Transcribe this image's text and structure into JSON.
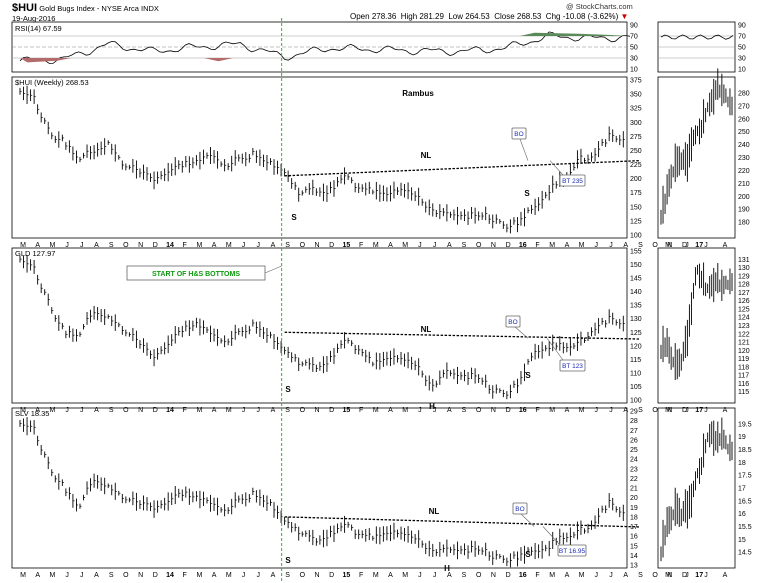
{
  "header": {
    "title": "$HUI",
    "subtitle": "Gold Bugs Index - NYSE Arca INDX",
    "date": "19-Aug-2016",
    "open_label": "Open",
    "open": "278.36",
    "high_label": "High",
    "high": "281.29",
    "low_label": "Low",
    "low": "264.53",
    "close_label": "Close",
    "close": "268.53",
    "chg_label": "Chg",
    "chg": "-10.08 (-3.62%)",
    "source": "@ StockCharts.com",
    "author": "Rambus"
  },
  "panels": {
    "rsi_label": "RSI(14) 67.59",
    "hui_label": "$HUI (Weekly) 268.53",
    "gld_label": "GLD 127.97",
    "slv_label": "SLV 18.35"
  },
  "annotations": {
    "nl": "NL",
    "bo": "BO",
    "s": "S",
    "h": "H",
    "start": "START OF H&S BOTTOMS",
    "bt_hui": "BT 235",
    "bt_gld": "BT 123",
    "bt_slv": "BT 16.95"
  },
  "chart_data": [
    {
      "type": "line",
      "title": "RSI(14) 67.59",
      "yticks": [
        10,
        30,
        50,
        70,
        90
      ],
      "ylim": [
        10,
        90
      ],
      "reference_lines": [
        30,
        50,
        70
      ],
      "x": [
        "2013-03",
        "2013-06",
        "2013-09",
        "2013-12",
        "2014-03",
        "2014-06",
        "2014-09",
        "2014-12",
        "2015-03",
        "2015-06",
        "2015-09",
        "2015-12",
        "2016-03",
        "2016-06",
        "2016-08"
      ],
      "values": [
        25,
        28,
        55,
        42,
        50,
        55,
        32,
        48,
        46,
        43,
        42,
        48,
        70,
        66,
        67.59
      ]
    },
    {
      "type": "bar",
      "title": "$HUI (Weekly) 268.53",
      "ylim": [
        100,
        375
      ],
      "yticks": [
        100,
        125,
        150,
        175,
        200,
        225,
        250,
        275,
        300,
        325,
        350,
        375
      ],
      "xticks": [
        "M",
        "A",
        "M",
        "J",
        "J",
        "A",
        "S",
        "O",
        "N",
        "D",
        "14",
        "F",
        "M",
        "A",
        "M",
        "J",
        "J",
        "A",
        "S",
        "O",
        "N",
        "D",
        "15",
        "F",
        "M",
        "A",
        "M",
        "J",
        "J",
        "A",
        "S",
        "O",
        "N",
        "D",
        "16",
        "F",
        "M",
        "A",
        "M",
        "J",
        "J",
        "A",
        "S",
        "O",
        "N",
        "D",
        "17"
      ],
      "x": [
        "2013-03",
        "2013-04",
        "2013-05",
        "2013-06",
        "2013-07",
        "2013-08",
        "2013-09",
        "2013-10",
        "2013-11",
        "2013-12",
        "2014-01",
        "2014-02",
        "2014-03",
        "2014-04",
        "2014-05",
        "2014-06",
        "2014-07",
        "2014-08",
        "2014-09",
        "2014-10",
        "2014-11",
        "2014-12",
        "2015-01",
        "2015-02",
        "2015-03",
        "2015-04",
        "2015-05",
        "2015-06",
        "2015-07",
        "2015-08",
        "2015-09",
        "2015-10",
        "2015-11",
        "2015-12",
        "2016-01",
        "2016-02",
        "2016-03",
        "2016-04",
        "2016-05",
        "2016-06",
        "2016-07",
        "2016-08"
      ],
      "values": [
        360,
        340,
        280,
        265,
        235,
        250,
        260,
        225,
        215,
        200,
        210,
        225,
        230,
        240,
        225,
        235,
        245,
        230,
        210,
        175,
        180,
        175,
        210,
        180,
        180,
        175,
        185,
        165,
        145,
        135,
        130,
        140,
        130,
        115,
        125,
        150,
        180,
        200,
        235,
        235,
        275,
        268.53
      ],
      "neckline": {
        "from": [
          "2014-09",
          205
        ],
        "to": [
          "2016-08",
          232
        ]
      },
      "bt_level": 235
    },
    {
      "type": "bar",
      "title": "GLD 127.97",
      "ylim": [
        100,
        155
      ],
      "yticks": [
        100,
        105,
        110,
        115,
        120,
        125,
        130,
        135,
        140,
        145,
        150,
        155
      ],
      "xticks": [
        "M",
        "A",
        "M",
        "J",
        "J",
        "A",
        "S",
        "O",
        "N",
        "D",
        "14",
        "F",
        "M",
        "A",
        "M",
        "J",
        "J",
        "A",
        "S",
        "O",
        "N",
        "D",
        "15",
        "F",
        "M",
        "A",
        "M",
        "J",
        "J",
        "A",
        "S",
        "O",
        "N",
        "D",
        "16",
        "F",
        "M",
        "A",
        "M",
        "J",
        "J",
        "A",
        "S",
        "O",
        "N",
        "D",
        "17"
      ],
      "x": [
        "2013-03",
        "2013-04",
        "2013-05",
        "2013-06",
        "2013-07",
        "2013-08",
        "2013-09",
        "2013-10",
        "2013-11",
        "2013-12",
        "2014-01",
        "2014-02",
        "2014-03",
        "2014-04",
        "2014-05",
        "2014-06",
        "2014-07",
        "2014-08",
        "2014-09",
        "2014-10",
        "2014-11",
        "2014-12",
        "2015-01",
        "2015-02",
        "2015-03",
        "2015-04",
        "2015-05",
        "2015-06",
        "2015-07",
        "2015-08",
        "2015-09",
        "2015-10",
        "2015-11",
        "2015-12",
        "2016-01",
        "2016-02",
        "2016-03",
        "2016-04",
        "2016-05",
        "2016-06",
        "2016-07",
        "2016-08"
      ],
      "values": [
        153,
        148,
        135,
        125,
        124,
        133,
        130,
        126,
        122,
        116,
        120,
        126,
        128,
        124,
        122,
        125,
        128,
        124,
        118,
        114,
        112,
        114,
        123,
        118,
        114,
        116,
        116,
        112,
        105,
        110,
        108,
        110,
        104,
        102,
        107,
        118,
        120,
        120,
        121,
        125,
        130,
        127.97
      ],
      "neckline": {
        "from": [
          "2014-09",
          125
        ],
        "to": [
          "2016-08",
          122.5
        ]
      },
      "bt_level": 123
    },
    {
      "type": "bar",
      "title": "SLV 18.35",
      "ylim": [
        13,
        29
      ],
      "yticks": [
        13,
        14,
        15,
        16,
        17,
        18,
        19,
        20,
        21,
        22,
        23,
        24,
        25,
        26,
        27,
        28,
        29
      ],
      "xticks": [
        "M",
        "A",
        "M",
        "J",
        "J",
        "A",
        "S",
        "O",
        "N",
        "D",
        "14",
        "F",
        "M",
        "A",
        "M",
        "J",
        "J",
        "A",
        "S",
        "O",
        "N",
        "D",
        "15",
        "F",
        "M",
        "A",
        "M",
        "J",
        "J",
        "A",
        "S",
        "O",
        "N",
        "D",
        "16",
        "F",
        "M",
        "A",
        "M",
        "J",
        "J",
        "A",
        "S",
        "O",
        "N",
        "D",
        "17"
      ],
      "x": [
        "2013-03",
        "2013-04",
        "2013-05",
        "2013-06",
        "2013-07",
        "2013-08",
        "2013-09",
        "2013-10",
        "2013-11",
        "2013-12",
        "2014-01",
        "2014-02",
        "2014-03",
        "2014-04",
        "2014-05",
        "2014-06",
        "2014-07",
        "2014-08",
        "2014-09",
        "2014-10",
        "2014-11",
        "2014-12",
        "2015-01",
        "2015-02",
        "2015-03",
        "2015-04",
        "2015-05",
        "2015-06",
        "2015-07",
        "2015-08",
        "2015-09",
        "2015-10",
        "2015-11",
        "2015-12",
        "2016-01",
        "2016-02",
        "2016-03",
        "2016-04",
        "2016-05",
        "2016-06",
        "2016-07",
        "2016-08"
      ],
      "values": [
        28,
        27,
        23,
        21,
        19,
        22,
        21,
        20,
        19.5,
        19,
        19.5,
        20.5,
        20,
        19.3,
        18.8,
        19.8,
        20.5,
        19.5,
        17.5,
        16.5,
        15.5,
        16,
        17.5,
        16,
        16,
        16.5,
        16.5,
        15.5,
        14.5,
        14.5,
        14.3,
        15,
        14,
        13.5,
        14,
        14.5,
        15,
        16,
        16.5,
        17,
        19.5,
        18.35
      ],
      "neckline": {
        "from": [
          "2014-09",
          18
        ],
        "to": [
          "2016-08",
          16.95
        ]
      },
      "bt_level": 16.95
    },
    {
      "type": "bar",
      "title": "$HUI daily",
      "ylim": [
        170,
        290
      ],
      "yticks": [
        180,
        190,
        200,
        210,
        220,
        230,
        240,
        250,
        260,
        270,
        280
      ],
      "xticks": [
        "M",
        "J",
        "J",
        "A"
      ],
      "values": [
        185,
        200,
        215,
        225,
        230,
        225,
        240,
        250,
        255,
        265,
        275,
        285,
        280,
        275,
        268
      ]
    },
    {
      "type": "bar",
      "title": "GLD daily",
      "ylim": [
        114,
        132
      ],
      "yticks": [
        115,
        116,
        117,
        118,
        119,
        120,
        121,
        122,
        123,
        124,
        125,
        126,
        127,
        128,
        129,
        130,
        131
      ],
      "xticks": [
        "M",
        "J",
        "J",
        "A"
      ],
      "values": [
        120,
        121,
        119,
        118,
        119,
        121,
        125,
        130,
        129,
        127,
        128,
        128.5,
        127.5,
        128,
        127.97
      ]
    },
    {
      "type": "bar",
      "title": "SLV daily",
      "ylim": [
        14,
        20
      ],
      "yticks": [
        14.5,
        15.0,
        15.5,
        16.0,
        16.5,
        17.0,
        17.5,
        18.0,
        18.5,
        19.0,
        19.5
      ],
      "xticks": [
        "M",
        "J",
        "J",
        "A"
      ],
      "values": [
        14.5,
        15.5,
        15.8,
        16.2,
        16.0,
        16.2,
        16.5,
        17.5,
        18.0,
        18.8,
        19.2,
        18.8,
        19.0,
        18.6,
        18.35
      ]
    }
  ]
}
